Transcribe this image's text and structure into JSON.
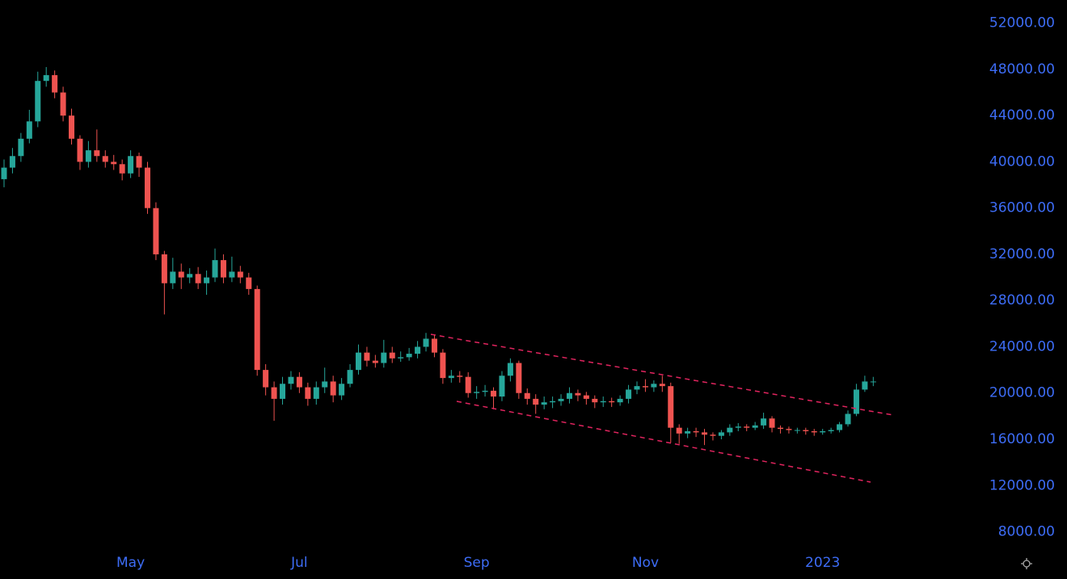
{
  "chart_data": {
    "type": "candlestick",
    "up_color": "#26a69a",
    "down_color": "#ef5350",
    "label_color": "#3d6cf5",
    "categories": [
      null,
      null,
      null,
      null,
      null,
      null,
      null,
      null,
      null,
      null,
      null,
      null,
      null,
      null,
      null,
      "May",
      null,
      null,
      null,
      null,
      null,
      null,
      null,
      null,
      null,
      null,
      null,
      null,
      null,
      null,
      null,
      null,
      null,
      null,
      null,
      "Jul",
      null,
      null,
      null,
      null,
      null,
      null,
      null,
      null,
      null,
      null,
      null,
      null,
      null,
      null,
      null,
      null,
      null,
      null,
      null,
      null,
      "Sep",
      null,
      null,
      null,
      null,
      null,
      null,
      null,
      null,
      null,
      null,
      null,
      null,
      null,
      null,
      null,
      null,
      null,
      null,
      null,
      "Nov",
      null,
      null,
      null,
      null,
      null,
      null,
      null,
      null,
      null,
      null,
      null,
      null,
      null,
      null,
      null,
      null,
      null,
      null,
      null,
      null,
      "2023",
      null,
      null,
      null,
      null,
      null,
      null
    ],
    "open": [
      38500,
      39500,
      40500,
      42000,
      43500,
      47000,
      47500,
      46000,
      44000,
      42000,
      40000,
      41000,
      40500,
      40000,
      39800,
      39000,
      40500,
      39500,
      36000,
      32000,
      29500,
      30500,
      30000,
      30300,
      29500,
      30000,
      31500,
      30000,
      30500,
      30000,
      29000,
      22000,
      20500,
      19500,
      20800,
      21400,
      20500,
      19500,
      20500,
      21000,
      19800,
      20800,
      22000,
      23500,
      22800,
      22600,
      23500,
      23000,
      23100,
      23400,
      24000,
      24700,
      23500,
      21300,
      21500,
      21400,
      20000,
      20100,
      20200,
      19700,
      21500,
      22600,
      20000,
      19500,
      19000,
      19200,
      19300,
      19500,
      20000,
      19800,
      19500,
      19200,
      19300,
      19200,
      19500,
      20300,
      20600,
      20500,
      20800,
      20600,
      17000,
      16500,
      16700,
      16600,
      16400,
      16300,
      16600,
      17000,
      17100,
      17000,
      17200,
      17800,
      17000,
      16900,
      16800,
      16800,
      16700,
      16600,
      16700,
      16800,
      17300,
      18200,
      20300,
      21000
    ],
    "high": [
      40200,
      41200,
      42500,
      44500,
      47800,
      48200,
      47900,
      46500,
      44600,
      42300,
      41800,
      42800,
      41000,
      40600,
      40200,
      41000,
      40800,
      40000,
      36500,
      32300,
      31700,
      31200,
      30800,
      30900,
      30600,
      32500,
      32000,
      31800,
      31000,
      30400,
      29300,
      22500,
      21000,
      21400,
      21900,
      21800,
      20900,
      21000,
      22200,
      21500,
      21300,
      22500,
      24200,
      24000,
      23300,
      24600,
      24000,
      23600,
      23900,
      24500,
      25200,
      25000,
      23800,
      22000,
      21900,
      21800,
      20600,
      20700,
      20500,
      21900,
      23000,
      22800,
      20400,
      19900,
      19700,
      19700,
      19900,
      20500,
      20300,
      20100,
      19800,
      19700,
      19600,
      19800,
      20700,
      21000,
      21200,
      21100,
      21500,
      20900,
      17300,
      17000,
      17000,
      16900,
      16600,
      16800,
      17300,
      17400,
      17300,
      17500,
      18300,
      18000,
      17200,
      17100,
      17000,
      17000,
      16900,
      16900,
      17000,
      17500,
      18500,
      20800,
      21500,
      21400
    ],
    "low": [
      37800,
      39000,
      40000,
      41600,
      43000,
      46500,
      45500,
      43500,
      41500,
      39300,
      39500,
      40000,
      39500,
      39300,
      38400,
      38600,
      38700,
      35500,
      31500,
      26800,
      29000,
      29000,
      29500,
      29000,
      28500,
      29600,
      29500,
      29600,
      29500,
      28500,
      21500,
      19800,
      17600,
      19000,
      20300,
      20000,
      18900,
      19000,
      20000,
      19200,
      19400,
      20500,
      21600,
      22300,
      22200,
      22200,
      22600,
      22700,
      22800,
      23000,
      23600,
      23100,
      20800,
      20900,
      20900,
      19600,
      19500,
      19700,
      18600,
      19300,
      21000,
      19500,
      19000,
      18200,
      18600,
      18700,
      18900,
      19100,
      19300,
      19000,
      18700,
      18800,
      18800,
      18900,
      19100,
      19900,
      20100,
      20100,
      20100,
      15700,
      15600,
      16100,
      16200,
      15500,
      15900,
      16000,
      16300,
      16700,
      16700,
      16800,
      16900,
      16600,
      16500,
      16500,
      16500,
      16400,
      16300,
      16400,
      16500,
      16600,
      17100,
      18000,
      20100,
      20600
    ],
    "close": [
      39500,
      40500,
      42000,
      43500,
      47000,
      47500,
      46000,
      44000,
      42000,
      40000,
      41000,
      40500,
      40000,
      39800,
      39000,
      40500,
      39500,
      36000,
      32000,
      29500,
      30500,
      30000,
      30300,
      29500,
      30000,
      31500,
      30000,
      30500,
      30000,
      29000,
      22000,
      20500,
      19500,
      20800,
      21400,
      20500,
      19500,
      20500,
      21000,
      19800,
      20800,
      22000,
      23500,
      22800,
      22600,
      23500,
      23000,
      23100,
      23400,
      24000,
      24700,
      23500,
      21300,
      21500,
      21400,
      20000,
      20100,
      20200,
      19700,
      21500,
      22600,
      20000,
      19500,
      19000,
      19200,
      19300,
      19500,
      20000,
      19800,
      19500,
      19200,
      19300,
      19200,
      19500,
      20300,
      20600,
      20500,
      20800,
      20600,
      17000,
      16500,
      16700,
      16600,
      16400,
      16300,
      16600,
      17000,
      17100,
      17000,
      17200,
      17800,
      17000,
      16900,
      16800,
      16800,
      16700,
      16600,
      16700,
      16800,
      17300,
      18200,
      20300,
      21000,
      21000
    ],
    "ylim": [
      6500,
      54000
    ],
    "yticks": [
      {
        "value": 8000,
        "label": "8000.00"
      },
      {
        "value": 12000,
        "label": "12000.00"
      },
      {
        "value": 16000,
        "label": "16000.00"
      },
      {
        "value": 20000,
        "label": "20000.00"
      },
      {
        "value": 24000,
        "label": "24000.00"
      },
      {
        "value": 28000,
        "label": "28000.00"
      },
      {
        "value": 32000,
        "label": "32000.00"
      },
      {
        "value": 36000,
        "label": "36000.00"
      },
      {
        "value": 40000,
        "label": "40000.00"
      },
      {
        "value": 44000,
        "label": "44000.00"
      },
      {
        "value": 48000,
        "label": "48000.00"
      },
      {
        "value": 52000,
        "label": "52000.00"
      }
    ]
  }
}
